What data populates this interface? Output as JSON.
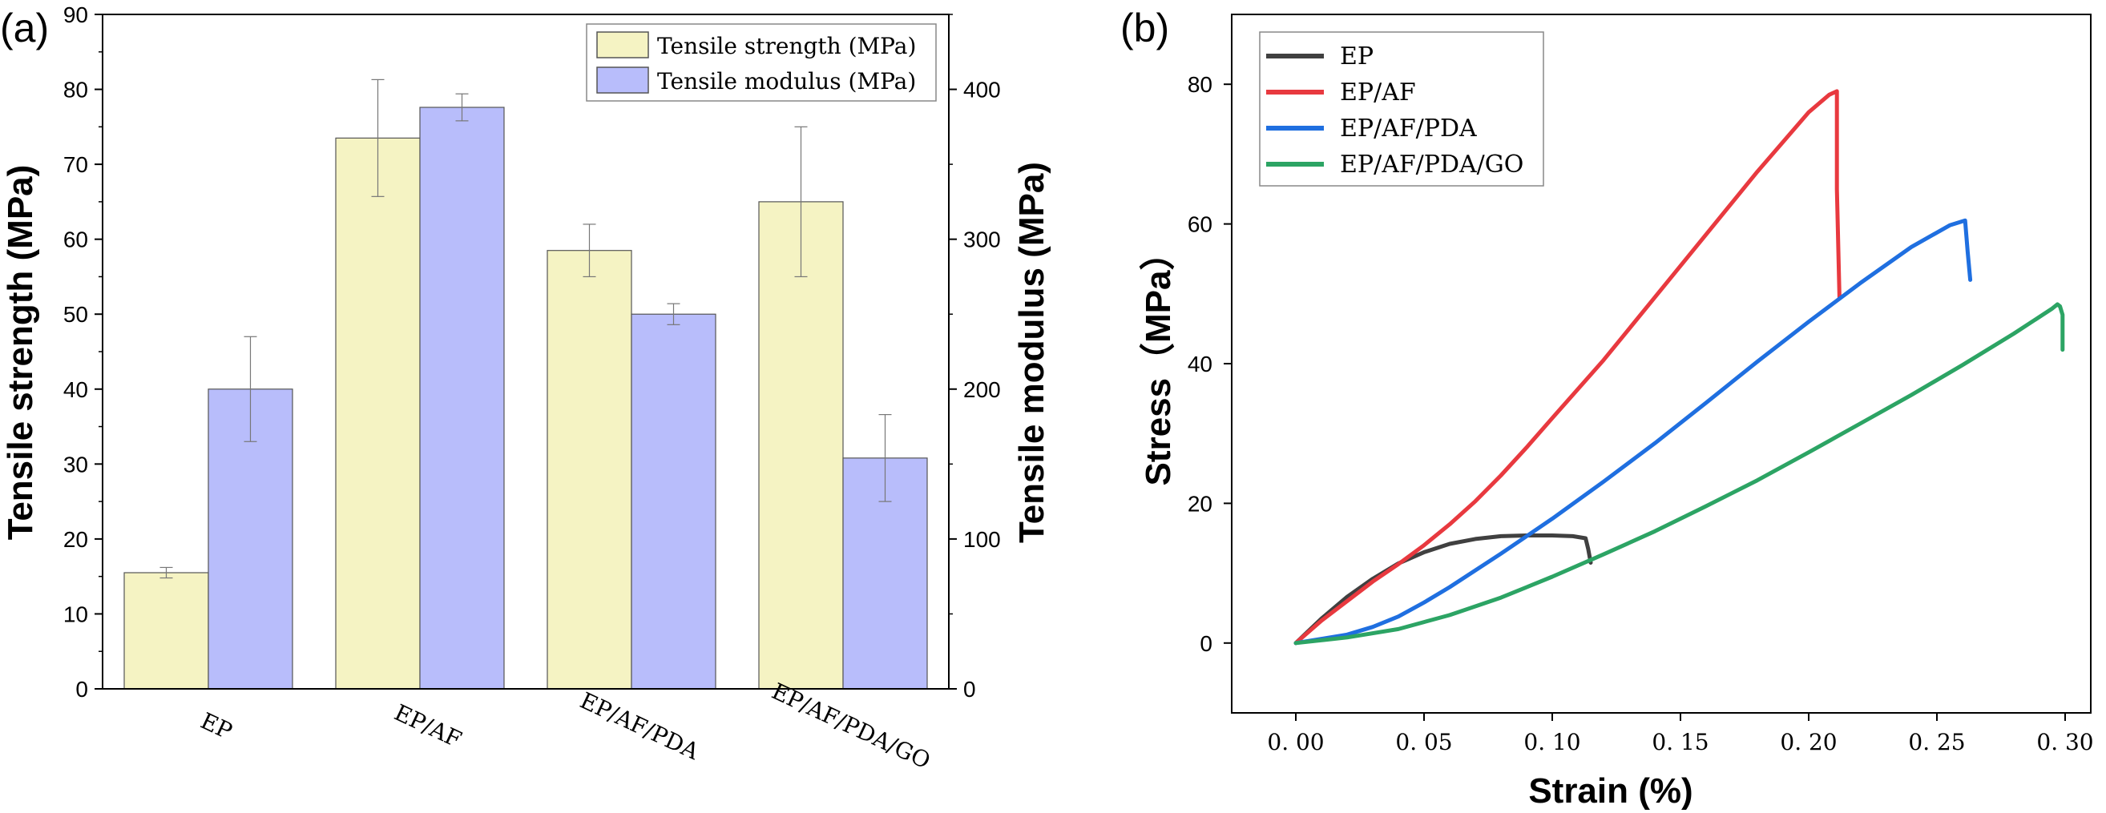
{
  "chart_data": [
    {
      "type": "bar",
      "panel_label": "(a)",
      "categories": [
        "EP",
        "EP/AF",
        "EP/AF/PDA",
        "EP/AF/PDA/GO"
      ],
      "series": [
        {
          "name": "Tensile strength (MPa)",
          "axis": "left",
          "color": "#f5f3c3",
          "values": [
            15.5,
            73.5,
            58.5,
            65
          ],
          "errors": [
            0.7,
            7.8,
            3.5,
            10
          ]
        },
        {
          "name": "Tensile modulus (MPa)",
          "axis": "right",
          "color": "#b8bdfb",
          "values": [
            200,
            388,
            250,
            154
          ],
          "errors": [
            35,
            9,
            7,
            29
          ]
        }
      ],
      "ylabel_left": "Tensile strength (MPa)",
      "ylabel_right": "Tensile modulus (MPa)",
      "ylim_left": [
        0,
        90
      ],
      "ylim_right": [
        0,
        450
      ],
      "yticks_left": [
        "0",
        "10",
        "20",
        "30",
        "40",
        "50",
        "60",
        "70",
        "80",
        "90"
      ],
      "yticks_right": [
        "0",
        "100",
        "200",
        "300",
        "400"
      ],
      "legend_position": "top-right"
    },
    {
      "type": "line",
      "panel_label": "(b)",
      "xlabel": "Strain (%)",
      "ylabel": "Stress（MPa）",
      "xlim": [
        -0.025,
        0.31
      ],
      "ylim": [
        -10,
        90
      ],
      "xticks": [
        "0.00",
        "0.05",
        "0.10",
        "0.15",
        "0.20",
        "0.25",
        "0.30"
      ],
      "yticks": [
        "0",
        "20",
        "40",
        "60",
        "80"
      ],
      "legend_position": "top-left",
      "series": [
        {
          "name": "EP",
          "color": "#404040",
          "x": [
            0,
            0.01,
            0.02,
            0.03,
            0.04,
            0.05,
            0.06,
            0.07,
            0.08,
            0.09,
            0.1,
            0.108,
            0.113,
            0.114,
            0.115
          ],
          "y": [
            0,
            3.5,
            6.6,
            9.2,
            11.4,
            13.0,
            14.2,
            14.9,
            15.3,
            15.4,
            15.4,
            15.3,
            15.0,
            13.5,
            11.5
          ]
        },
        {
          "name": "EP/AF",
          "color": "#e8393f",
          "x": [
            0,
            0.01,
            0.02,
            0.03,
            0.04,
            0.05,
            0.06,
            0.07,
            0.08,
            0.09,
            0.1,
            0.12,
            0.14,
            0.16,
            0.18,
            0.2,
            0.208,
            0.211,
            0.211,
            0.212
          ],
          "y": [
            0,
            3.2,
            6.0,
            8.8,
            11.3,
            14.0,
            17.0,
            20.3,
            24.0,
            28.0,
            32.2,
            40.5,
            49.5,
            58.5,
            67.5,
            76.0,
            78.5,
            79.0,
            65.0,
            49.5
          ]
        },
        {
          "name": "EP/AF/PDA",
          "color": "#1f6fe0",
          "x": [
            0,
            0.01,
            0.02,
            0.03,
            0.04,
            0.05,
            0.06,
            0.08,
            0.1,
            0.12,
            0.14,
            0.16,
            0.18,
            0.2,
            0.22,
            0.24,
            0.255,
            0.261,
            0.262,
            0.263
          ],
          "y": [
            0,
            0.6,
            1.2,
            2.3,
            3.8,
            5.8,
            8.0,
            12.8,
            17.8,
            23.1,
            28.6,
            34.4,
            40.3,
            46.0,
            51.5,
            56.7,
            59.8,
            60.5,
            56.0,
            52.0
          ]
        },
        {
          "name": "EP/AF/PDA/GO",
          "color": "#2ca464",
          "x": [
            0,
            0.02,
            0.04,
            0.05,
            0.06,
            0.08,
            0.1,
            0.12,
            0.14,
            0.16,
            0.18,
            0.2,
            0.22,
            0.24,
            0.26,
            0.28,
            0.295,
            0.297,
            0.298,
            0.299,
            0.299
          ],
          "y": [
            0,
            0.8,
            2.0,
            3.0,
            4.0,
            6.5,
            9.5,
            12.7,
            16.0,
            19.6,
            23.3,
            27.3,
            31.4,
            35.5,
            39.8,
            44.3,
            47.9,
            48.5,
            48.2,
            47.0,
            42.0
          ]
        }
      ]
    }
  ]
}
